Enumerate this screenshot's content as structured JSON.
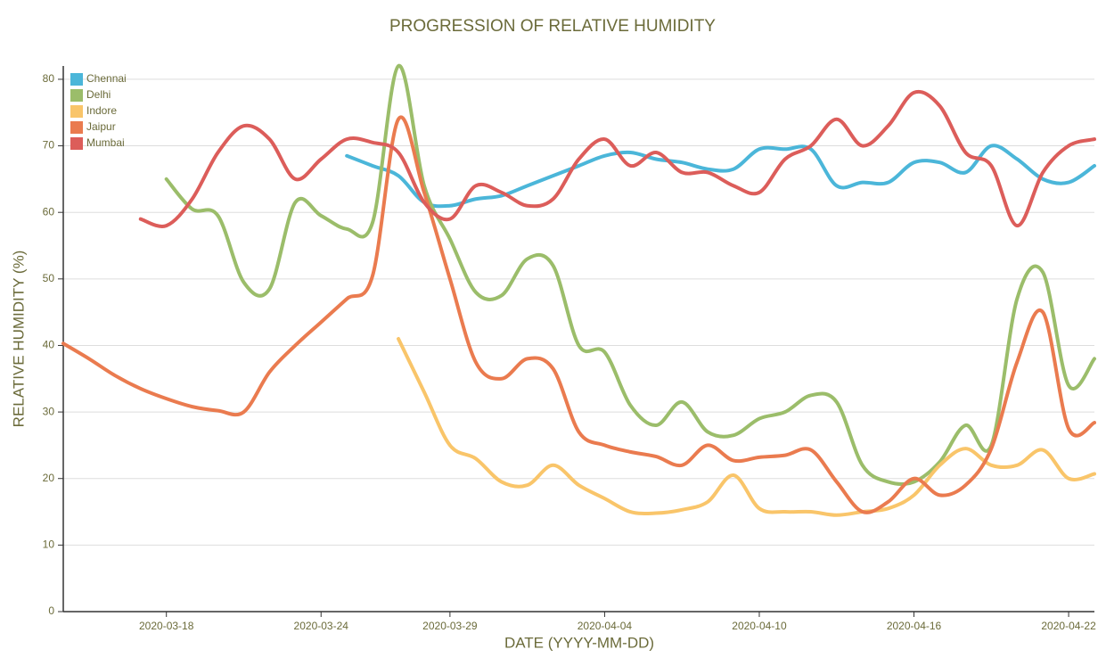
{
  "chart_data": {
    "type": "line",
    "title": "PROGRESSION OF RELATIVE HUMIDITY",
    "x_label": "DATE (YYYY-MM-DD)",
    "y_label": "RELATIVE HUMIDITY (%)",
    "x": [
      "2020-03-14",
      "2020-03-15",
      "2020-03-16",
      "2020-03-17",
      "2020-03-18",
      "2020-03-19",
      "2020-03-20",
      "2020-03-21",
      "2020-03-22",
      "2020-03-23",
      "2020-03-24",
      "2020-03-25",
      "2020-03-26",
      "2020-03-27",
      "2020-03-28",
      "2020-03-29",
      "2020-03-30",
      "2020-03-31",
      "2020-04-01",
      "2020-04-02",
      "2020-04-03",
      "2020-04-04",
      "2020-04-05",
      "2020-04-06",
      "2020-04-07",
      "2020-04-08",
      "2020-04-09",
      "2020-04-10",
      "2020-04-11",
      "2020-04-12",
      "2020-04-13",
      "2020-04-14",
      "2020-04-15",
      "2020-04-16",
      "2020-04-17",
      "2020-04-18",
      "2020-04-19",
      "2020-04-20",
      "2020-04-21",
      "2020-04-22",
      "2020-04-23"
    ],
    "series": [
      {
        "name": "Chennai",
        "color": "#4bb6d9",
        "values": [
          null,
          null,
          null,
          null,
          null,
          null,
          null,
          null,
          null,
          null,
          null,
          68.5,
          67,
          65.5,
          61.5,
          61,
          62,
          62.5,
          64,
          65.5,
          67,
          68.5,
          69,
          68,
          67.5,
          66.5,
          66.5,
          69.5,
          69.5,
          69.5,
          64,
          64.5,
          64.5,
          67.5,
          67.5,
          66,
          70,
          68,
          65,
          64.5,
          67
        ]
      },
      {
        "name": "Delhi",
        "color": "#9bbd6a",
        "values": [
          null,
          null,
          null,
          null,
          65,
          60.5,
          59.5,
          49.5,
          48.5,
          61.5,
          59.5,
          57.5,
          58.5,
          82,
          64,
          56,
          48,
          47.5,
          53,
          52,
          40,
          39,
          31,
          28,
          31.5,
          27,
          26.5,
          29,
          30,
          32.5,
          31.5,
          22,
          19.5,
          19.5,
          22.5,
          28,
          25,
          47,
          51,
          34,
          38
        ]
      },
      {
        "name": "Indore",
        "color": "#f9c56a",
        "values": [
          null,
          null,
          null,
          null,
          null,
          null,
          null,
          null,
          null,
          null,
          null,
          null,
          null,
          41,
          33,
          25,
          23,
          19.5,
          19,
          22,
          19,
          17,
          15,
          14.8,
          15.3,
          16.5,
          20.5,
          15.5,
          15,
          15,
          14.5,
          15,
          15.5,
          17.5,
          22,
          24.5,
          22,
          22,
          24.3,
          20,
          20.7
        ]
      },
      {
        "name": "Jaipur",
        "color": "#ea7b4f",
        "values": [
          40.3,
          38,
          35.5,
          33.5,
          32,
          30.8,
          30.2,
          30,
          36,
          40,
          43.5,
          47,
          50.5,
          74,
          63,
          50,
          37.5,
          35,
          38,
          36.5,
          27,
          25,
          24,
          23.3,
          22,
          25,
          22.7,
          23.2,
          23.5,
          24.3,
          19.5,
          15,
          16.5,
          20,
          17.5,
          19,
          24.5,
          37.5,
          45,
          27.5,
          28.4
        ]
      },
      {
        "name": "Mumbai",
        "color": "#dc5d5a",
        "values": [
          null,
          null,
          null,
          59,
          58,
          62,
          69,
          73,
          71,
          65,
          68,
          71,
          70.5,
          69,
          61.5,
          59,
          64,
          63,
          61,
          62,
          68,
          71,
          67,
          69,
          66,
          66,
          64,
          63,
          68,
          70,
          74,
          70,
          73,
          78,
          76,
          69,
          67,
          58,
          66,
          70,
          71
        ]
      }
    ],
    "xlim": [
      "2020-03-14",
      "2020-04-23"
    ],
    "xticks": [
      "2020-03-18",
      "2020-03-24",
      "2020-03-29",
      "2020-04-04",
      "2020-04-10",
      "2020-04-16",
      "2020-04-22"
    ],
    "ylim": [
      0,
      82
    ],
    "yticks": [
      0,
      10,
      20,
      30,
      40,
      50,
      60,
      70,
      80
    ],
    "grid": true,
    "legend": "upper left"
  }
}
